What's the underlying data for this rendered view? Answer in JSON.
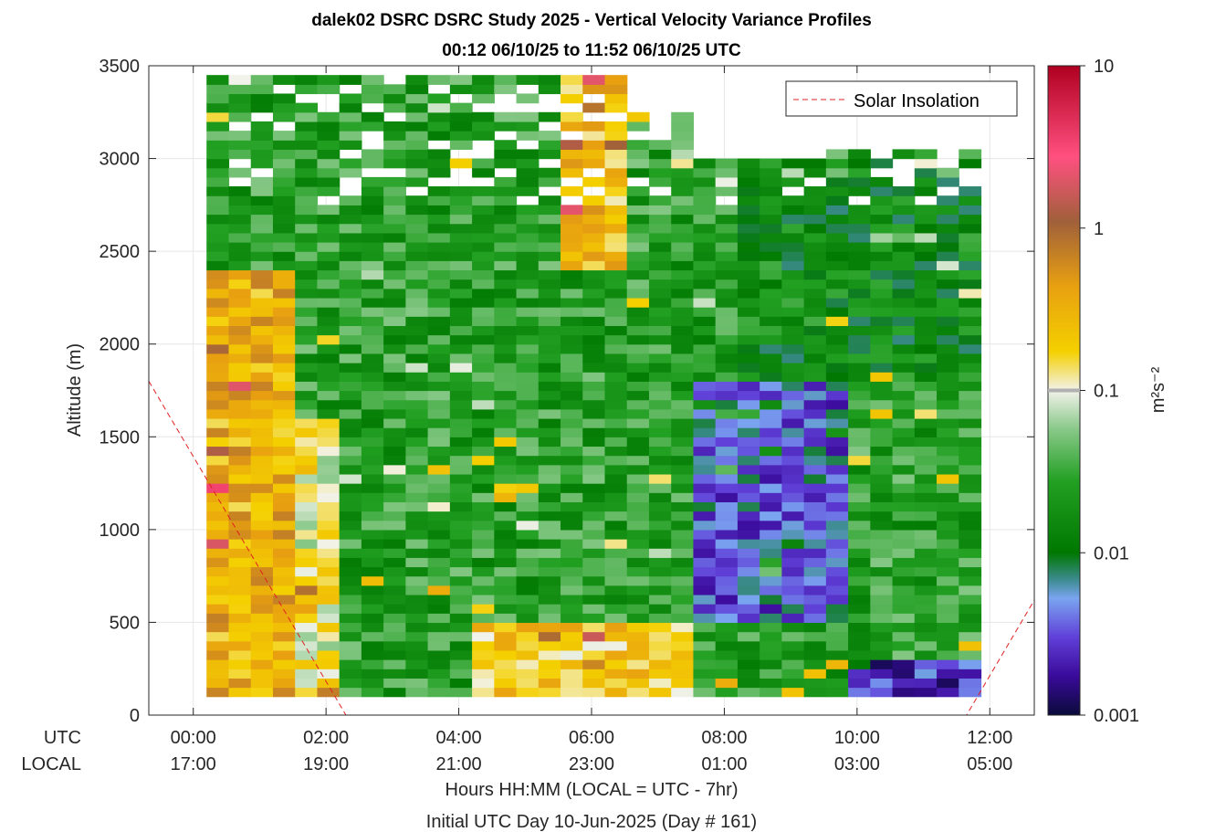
{
  "chart_data": {
    "type": "heatmap",
    "title": "dalek02 DSRC DSRC Study 2025 - Vertical Velocity Variance Profiles",
    "subtitle": "00:12 06/10/25 to 11:52 06/10/25  UTC",
    "ylabel": "Altitude (m)",
    "xlabel": "Hours HH:MM  (LOCAL = UTC - 7hr)",
    "xlabel2": "Initial UTC Day 10-Jun-2025 (Day # 161)",
    "ylim": [
      0,
      3500
    ],
    "yticks": [
      "0",
      "500",
      "1000",
      "1500",
      "2000",
      "2500",
      "3000",
      "3500"
    ],
    "xlim_hours": [
      -0.67,
      12.67
    ],
    "row_labels": [
      "UTC",
      "LOCAL"
    ],
    "xticks_utc": [
      "00:00",
      "02:00",
      "04:00",
      "06:00",
      "08:00",
      "10:00",
      "12:00"
    ],
    "xticks_local": [
      "17:00",
      "19:00",
      "21:00",
      "23:00",
      "01:00",
      "03:00",
      "05:00"
    ],
    "colorbar": {
      "label": "m²s⁻²",
      "scale": "log",
      "range": [
        0.001,
        10
      ],
      "ticks": [
        "0.001",
        "0.01",
        "0.1",
        "1",
        "10"
      ],
      "marker_value": 0.1
    },
    "legend": {
      "label": "Solar Insolation",
      "position": "top-right"
    },
    "data_start_hour": 0.2,
    "data_end_hour": 11.87,
    "profile_step_hours": 0.3333,
    "gate_height_m": 50,
    "min_altitude_m": 100,
    "solar_insolation_curve": {
      "hours": [
        -0.67,
        2.3,
        2.45,
        11.5,
        11.65,
        12.67
      ],
      "altitude_m": [
        1800,
        0,
        0,
        0,
        0,
        620
      ]
    },
    "regimes_log10_variance": [
      {
        "hours": [
          0.2,
          1.5
        ],
        "altitude_m": [
          100,
          2400
        ],
        "typical": -0.5
      },
      {
        "hours": [
          1.5,
          2.0
        ],
        "altitude_m": [
          100,
          1600
        ],
        "typical": -0.9
      },
      {
        "hours": [
          2.0,
          6.0
        ],
        "altitude_m": [
          600,
          2600
        ],
        "typical": -1.6
      },
      {
        "hours": [
          5.3,
          6.3
        ],
        "altitude_m": [
          2400,
          3450
        ],
        "typical": -0.6
      },
      {
        "hours": [
          3.9,
          7.5
        ],
        "altitude_m": [
          100,
          500
        ],
        "typical": -0.7
      },
      {
        "hours": [
          7.5,
          9.7
        ],
        "altitude_m": [
          500,
          1800
        ],
        "typical": -2.4
      },
      {
        "hours": [
          9.7,
          11.87
        ],
        "altitude_m": [
          100,
          300
        ],
        "typical": -2.6
      },
      {
        "hours": [
          8.0,
          11.87
        ],
        "altitude_m": [
          1800,
          3000
        ],
        "typical": -1.8
      }
    ]
  }
}
